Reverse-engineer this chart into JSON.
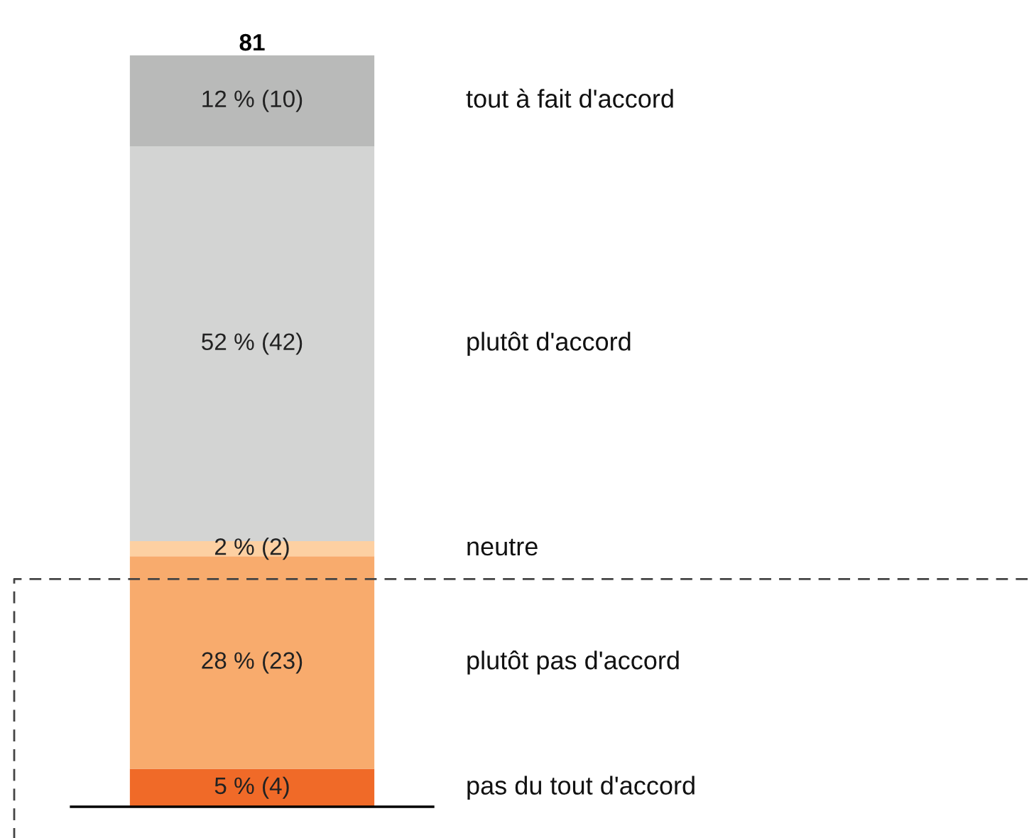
{
  "chart_data": {
    "type": "bar",
    "stacked": true,
    "categories": [
      null
    ],
    "annotations": [
      "81"
    ],
    "ref_lines": [
      {
        "axis": "y",
        "value": 30,
        "color": "#444444",
        "line_style": "dashed"
      }
    ],
    "series": [
      {
        "name": "pas du tout d'accord",
        "color": "#f06a28",
        "values": [
          5
        ],
        "value_labels": [
          "5 % (4)"
        ]
      },
      {
        "name": "plutôt pas d'accord",
        "color": "#f8ab6d",
        "values": [
          28
        ],
        "value_labels": [
          "28 % (23)"
        ]
      },
      {
        "name": "neutre",
        "color": "#fdd0a2",
        "values": [
          2
        ],
        "value_labels": [
          "2 % (2)"
        ]
      },
      {
        "name": "plutôt d'accord",
        "color": "#d3d4d3",
        "values": [
          52
        ],
        "value_labels": [
          "52 % (42)"
        ]
      },
      {
        "name": "tout à fait d'accord",
        "color": "#b9bab9",
        "values": [
          12
        ],
        "value_labels": [
          "12 % (10)"
        ]
      }
    ]
  }
}
